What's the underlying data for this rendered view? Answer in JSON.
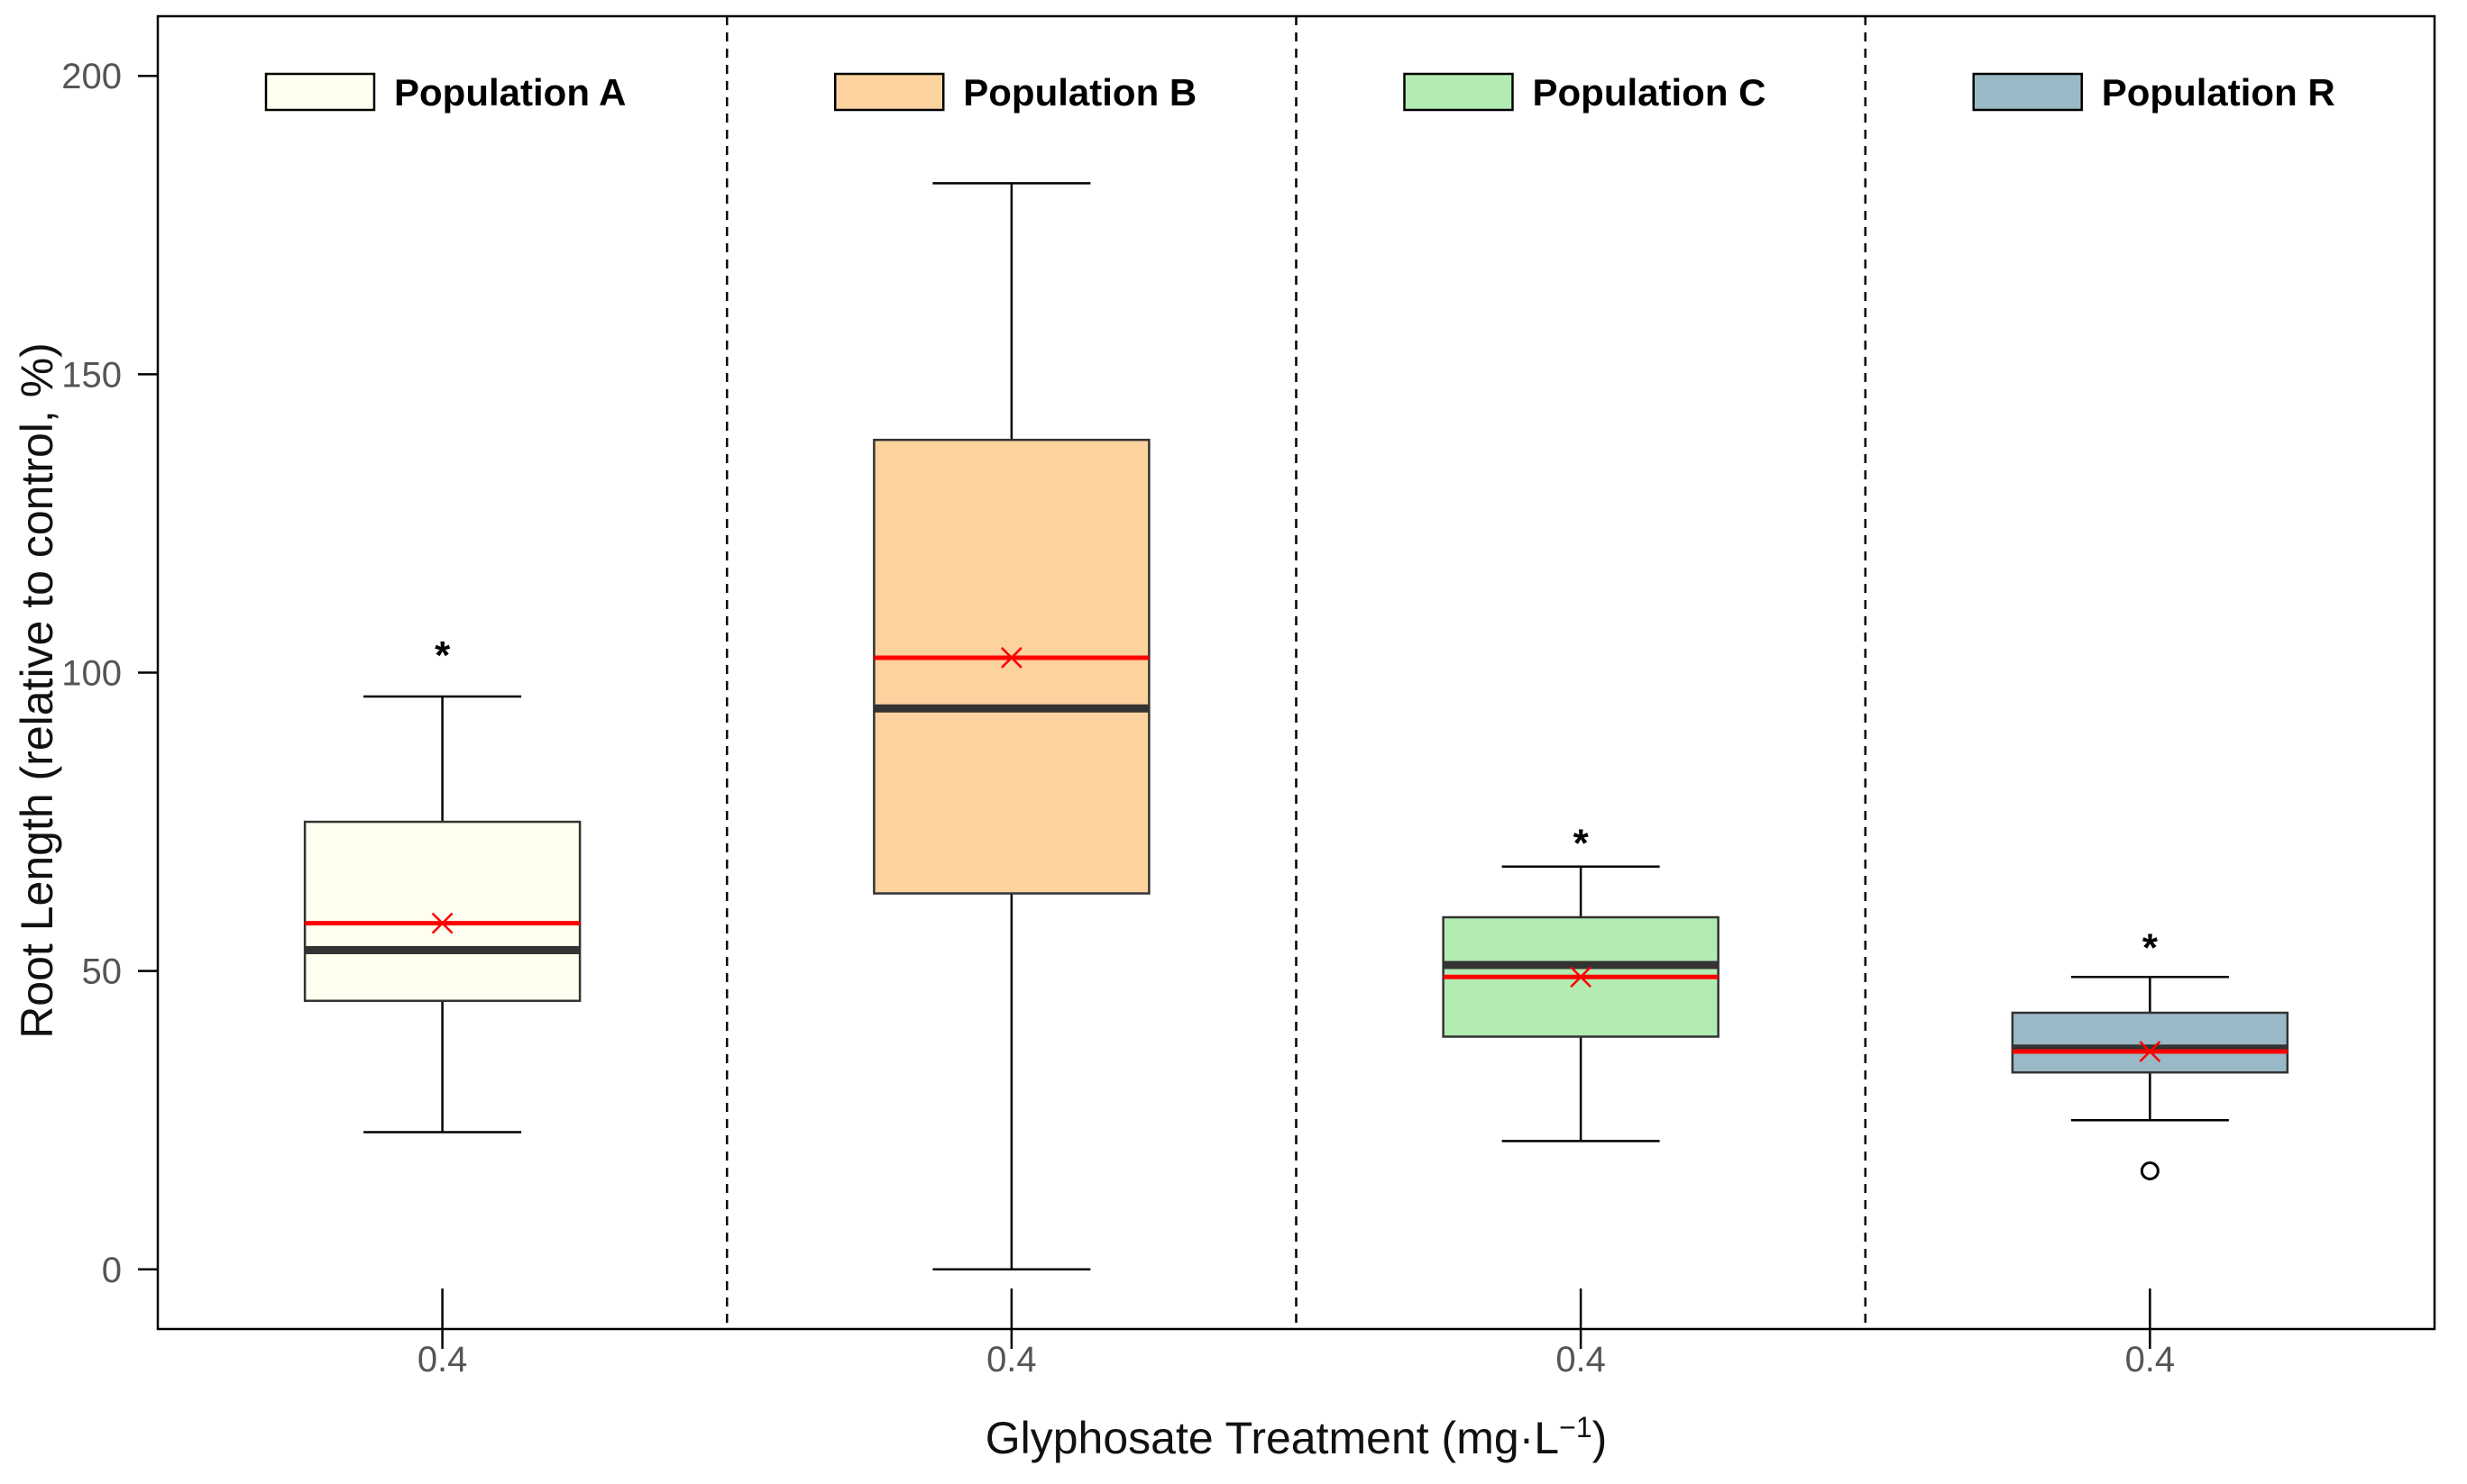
{
  "chart_data": {
    "type": "boxplot",
    "title": "",
    "xlabel": {
      "main": "Glyphosate Treatment (mg·L",
      "superscript": "−1",
      "close": ")"
    },
    "ylabel": "Root Length (relative to control, %)",
    "ylim": [
      -10,
      210
    ],
    "yticks": [
      "0",
      "50",
      "100",
      "150",
      "200"
    ],
    "ytick_values": [
      0,
      50,
      100,
      150,
      200
    ],
    "grid": false,
    "legend_position": "top",
    "colors": {
      "mean_line": "#ff0000",
      "median_line": "#333333",
      "whisker": "#000000",
      "axis": "#000000"
    },
    "groups": [
      {
        "name": "Population A",
        "tick_label": "0.4",
        "fill": "#fffff0",
        "whisker_low": 23,
        "q1": 45,
        "median": 53.5,
        "mean": 58,
        "q3": 75,
        "whisker_high": 96,
        "outliers": [],
        "significance": "*",
        "significance_y": 104
      },
      {
        "name": "Population B",
        "tick_label": "0.4",
        "fill": "#fcd29f",
        "whisker_low": 0,
        "q1": 63,
        "median": 94,
        "mean": 102.5,
        "q3": 139,
        "whisker_high": 182,
        "outliers": [],
        "significance": "",
        "significance_y": null
      },
      {
        "name": "Population C",
        "tick_label": "0.4",
        "fill": "#b3ecb3",
        "whisker_low": 21.5,
        "q1": 39,
        "median": 51,
        "mean": 49,
        "q3": 59,
        "whisker_high": 67.5,
        "outliers": [],
        "significance": "*",
        "significance_y": 72.5
      },
      {
        "name": "Population R",
        "tick_label": "0.4",
        "fill": "#9ab9c6",
        "whisker_low": 25,
        "q1": 33,
        "median": 37,
        "mean": 36.5,
        "q3": 43,
        "whisker_high": 49,
        "outliers": [
          16.5
        ],
        "significance": "*",
        "significance_y": 55
      }
    ]
  }
}
